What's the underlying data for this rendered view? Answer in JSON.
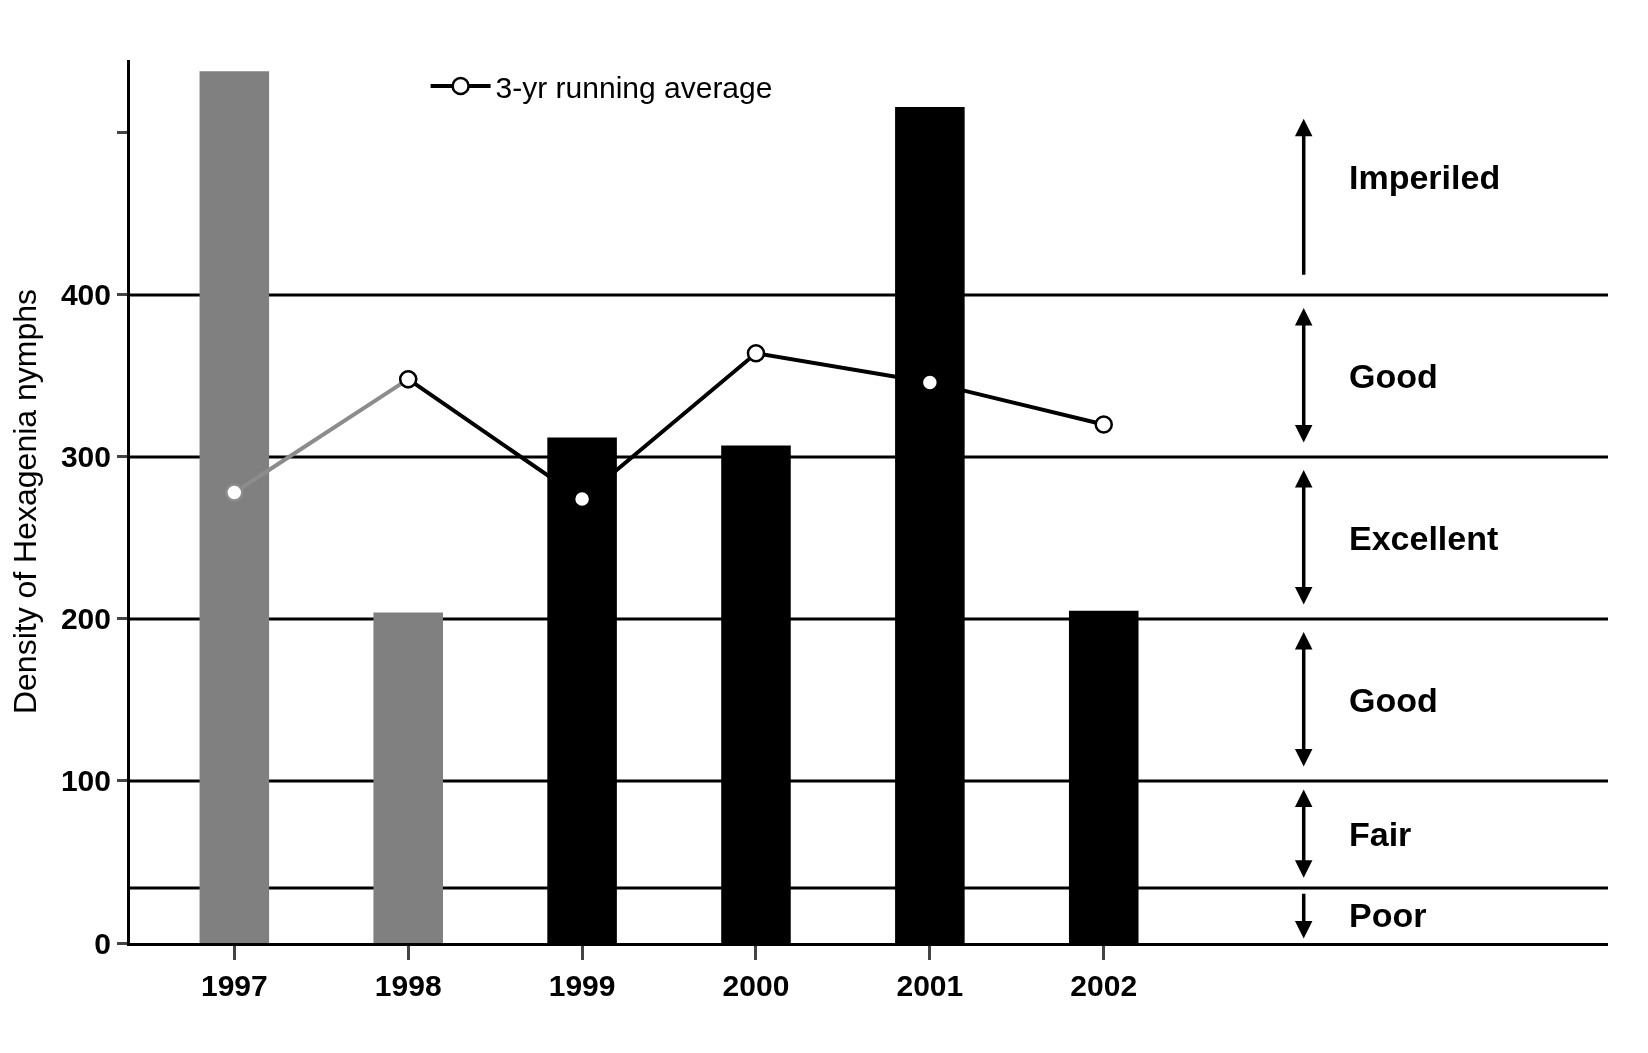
{
  "chart_data": {
    "type": "bar",
    "ylabel": "Density of Hexagenia nymphs",
    "x": [
      1997,
      1998,
      1999,
      2000,
      2001,
      2002
    ],
    "values": [
      538,
      204,
      312,
      307,
      516,
      205
    ],
    "colors": [
      "#808080",
      "#808080",
      "#000000",
      "#000000",
      "#000000",
      "#000000"
    ],
    "series": [
      {
        "type": "line",
        "color": "#8c8c8c",
        "x": [
          1997,
          1998
        ],
        "values": [
          278,
          348
        ]
      },
      {
        "type": "line",
        "name": "3-yr running average",
        "color": "#000000",
        "x": [
          1998,
          1999,
          2000,
          2001,
          2002
        ],
        "values": [
          348,
          274,
          364,
          346,
          320
        ]
      }
    ],
    "xlim": [
      1996.4,
      2004.9
    ],
    "xticks": [
      1997,
      1998,
      1999,
      2000,
      2001,
      2002
    ],
    "ylim": [
      0,
      545
    ],
    "yticks": [
      0,
      100,
      200,
      300,
      400,
      {
        "value": 500,
        "label": null
      }
    ],
    "ref_lines": [
      {
        "axis": "y",
        "value": 34
      },
      {
        "axis": "y",
        "value": 100
      },
      {
        "axis": "y",
        "value": 200
      },
      {
        "axis": "y",
        "value": 300
      },
      {
        "axis": "y",
        "value": 400
      }
    ],
    "annotations": [
      "Imperiled",
      "Good",
      "Excellent",
      "Good",
      "Fair",
      "Poor"
    ],
    "marker": "circle",
    "legend": "top",
    "grid": false
  }
}
